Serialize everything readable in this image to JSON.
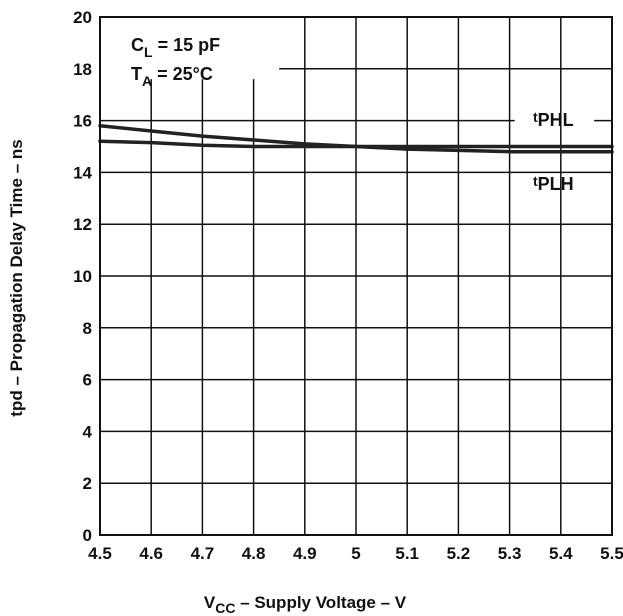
{
  "chart_data": {
    "type": "line",
    "xlabel": {
      "main": "V",
      "sub": "CC",
      "rest": " – Supply Voltage – V"
    },
    "ylabel": "tpd – Propagation Delay Time – ns",
    "xlim": [
      4.5,
      5.5
    ],
    "ylim": [
      0,
      20
    ],
    "x_ticks": [
      "4.5",
      "4.6",
      "4.7",
      "4.8",
      "4.9",
      "5",
      "5.1",
      "5.2",
      "5.3",
      "5.4",
      "5.5"
    ],
    "y_ticks": [
      "0",
      "2",
      "4",
      "6",
      "8",
      "10",
      "12",
      "14",
      "16",
      "18",
      "20"
    ],
    "grid": true,
    "annotations": [
      {
        "main": "C",
        "sub": "L",
        "rest": " = 15 pF"
      },
      {
        "main": "T",
        "sub": "A",
        "rest": " = 25°C"
      }
    ],
    "series": [
      {
        "name": "tPHL",
        "label_main": "t",
        "label_sub": "PHL",
        "x": [
          4.5,
          4.6,
          4.7,
          4.8,
          4.9,
          5.0,
          5.1,
          5.2,
          5.3,
          5.4,
          5.5
        ],
        "y": [
          15.8,
          15.6,
          15.4,
          15.25,
          15.1,
          15.0,
          14.9,
          14.85,
          14.8,
          14.8,
          14.8
        ]
      },
      {
        "name": "tPLH",
        "label_main": "t",
        "label_sub": "PLH",
        "x": [
          4.5,
          4.6,
          4.7,
          4.8,
          4.9,
          5.0,
          5.1,
          5.2,
          5.3,
          5.4,
          5.5
        ],
        "y": [
          15.2,
          15.15,
          15.05,
          15.0,
          15.0,
          15.0,
          15.0,
          15.0,
          15.0,
          15.0,
          15.0
        ]
      }
    ]
  }
}
